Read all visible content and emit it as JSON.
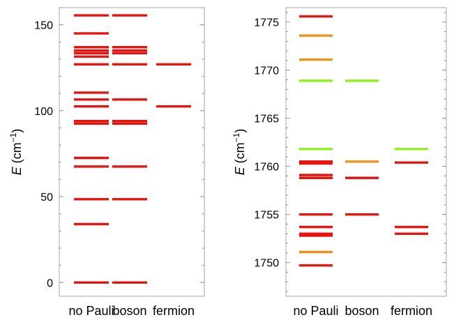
{
  "chart_data": [
    {
      "type": "level-diagram",
      "ylabel": {
        "symbol": "E",
        "unit_base": "(cm",
        "unit_exp": "−1",
        "unit_close": ")"
      },
      "ylim": [
        -8,
        160
      ],
      "yticks_major": [
        0,
        50,
        100,
        150
      ],
      "yticks_minor_step": 10,
      "categories": [
        "no Pauli",
        "boson",
        "fermion"
      ],
      "series": [
        {
          "levels": [
            {
              "value": 0,
              "color": "#e8120e"
            },
            {
              "value": 34,
              "color": "#e8120e"
            },
            {
              "value": 48.5,
              "color": "#e8120e"
            },
            {
              "value": 67.5,
              "color": "#e8120e"
            },
            {
              "value": 72.5,
              "color": "#e8120e"
            },
            {
              "value": 92.5,
              "color": "#e8120e"
            },
            {
              "value": 94,
              "color": "#e8120e"
            },
            {
              "value": 102.5,
              "color": "#e8120e"
            },
            {
              "value": 106.5,
              "color": "#e8120e"
            },
            {
              "value": 110.5,
              "color": "#e8120e"
            },
            {
              "value": 127,
              "color": "#e8120e"
            },
            {
              "value": 131.5,
              "color": "#e8120e"
            },
            {
              "value": 133.5,
              "color": "#e8120e"
            },
            {
              "value": 135,
              "color": "#e8120e"
            },
            {
              "value": 137,
              "color": "#e8120e"
            },
            {
              "value": 145,
              "color": "#e8120e"
            },
            {
              "value": 155.5,
              "color": "#e8120e"
            }
          ]
        },
        {
          "levels": [
            {
              "value": 0,
              "color": "#e8120e"
            },
            {
              "value": 48.5,
              "color": "#e8120e"
            },
            {
              "value": 67.5,
              "color": "#e8120e"
            },
            {
              "value": 92.5,
              "color": "#e8120e"
            },
            {
              "value": 94,
              "color": "#e8120e"
            },
            {
              "value": 106.5,
              "color": "#e8120e"
            },
            {
              "value": 127,
              "color": "#e8120e"
            },
            {
              "value": 133.5,
              "color": "#e8120e"
            },
            {
              "value": 135,
              "color": "#e8120e"
            },
            {
              "value": 137,
              "color": "#e8120e"
            },
            {
              "value": 155.5,
              "color": "#e8120e"
            }
          ]
        },
        {
          "levels": [
            {
              "value": 102.5,
              "color": "#e8120e"
            },
            {
              "value": 127,
              "color": "#e8120e"
            }
          ]
        }
      ]
    },
    {
      "type": "level-diagram",
      "ylabel": {
        "symbol": "E",
        "unit_base": "(cm",
        "unit_exp": "−1",
        "unit_close": ")"
      },
      "ylim": [
        1746.5,
        1776.5
      ],
      "yticks_major": [
        1750,
        1755,
        1760,
        1765,
        1770,
        1775
      ],
      "yticks_minor_step": 1,
      "categories": [
        "no Pauli",
        "boson",
        "fermion"
      ],
      "series": [
        {
          "levels": [
            {
              "value": 1749.7,
              "color": "#e8120e"
            },
            {
              "value": 1751.1,
              "color": "#f08a1a"
            },
            {
              "value": 1752.8,
              "color": "#e8120e"
            },
            {
              "value": 1753.0,
              "color": "#e8120e"
            },
            {
              "value": 1753.7,
              "color": "#e8120e"
            },
            {
              "value": 1755.0,
              "color": "#e8120e"
            },
            {
              "value": 1758.8,
              "color": "#e8120e"
            },
            {
              "value": 1759.1,
              "color": "#e8120e"
            },
            {
              "value": 1760.3,
              "color": "#e8120e"
            },
            {
              "value": 1760.5,
              "color": "#e8120e"
            },
            {
              "value": 1761.8,
              "color": "#8ef01e"
            },
            {
              "value": 1768.9,
              "color": "#8ef01e"
            },
            {
              "value": 1771.1,
              "color": "#f0921a"
            },
            {
              "value": 1773.6,
              "color": "#f0921a"
            },
            {
              "value": 1775.6,
              "color": "#e8120e"
            }
          ]
        },
        {
          "levels": [
            {
              "value": 1755.0,
              "color": "#e8120e"
            },
            {
              "value": 1758.8,
              "color": "#e8120e"
            },
            {
              "value": 1760.5,
              "color": "#f0921a"
            },
            {
              "value": 1768.9,
              "color": "#8ef01e"
            }
          ]
        },
        {
          "levels": [
            {
              "value": 1753.0,
              "color": "#e8120e"
            },
            {
              "value": 1753.7,
              "color": "#e8120e"
            },
            {
              "value": 1760.4,
              "color": "#e8120e"
            },
            {
              "value": 1761.8,
              "color": "#8ef01e"
            }
          ]
        }
      ]
    }
  ]
}
